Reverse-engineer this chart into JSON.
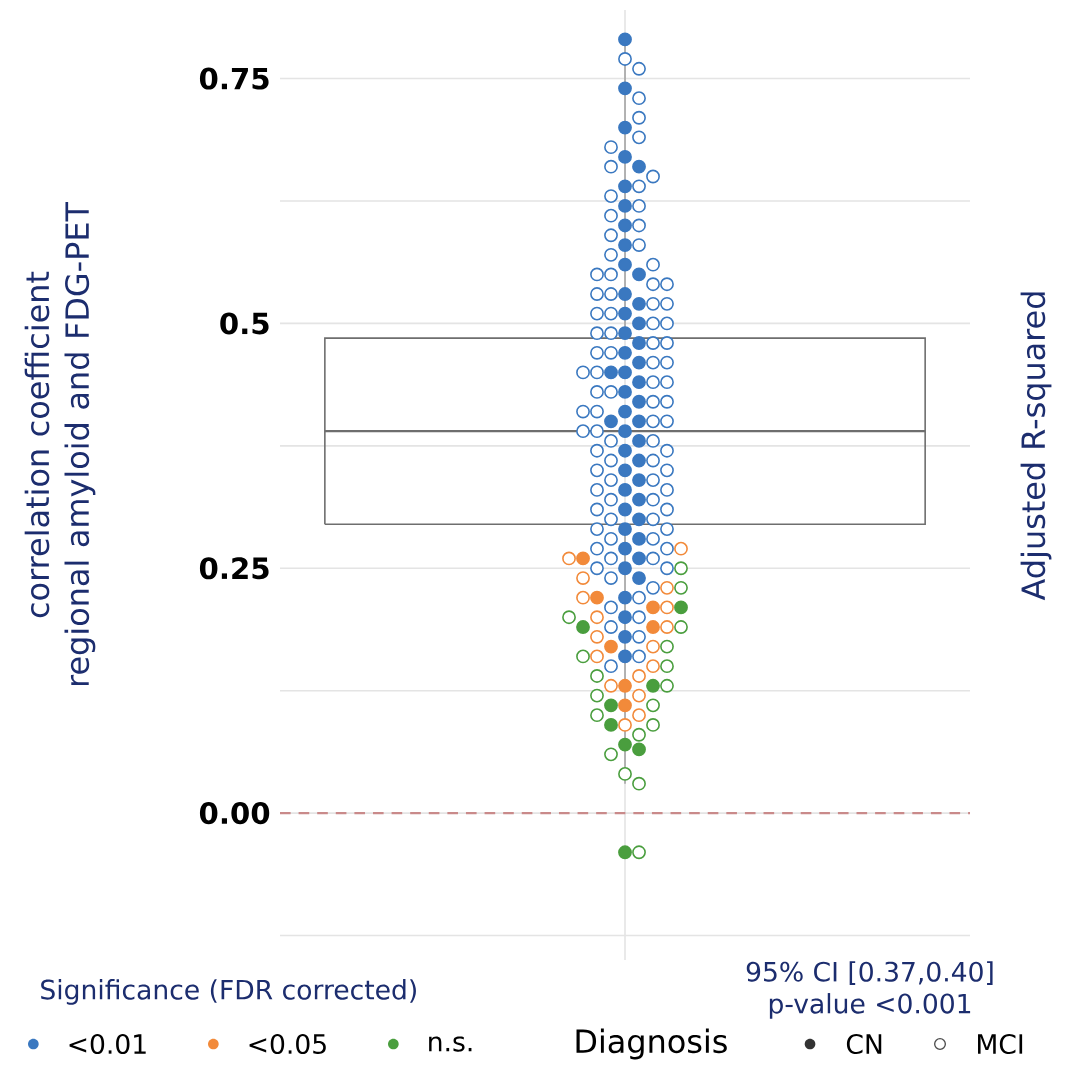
{
  "chart_data": {
    "type": "box",
    "ylabel": "correlation coefficient regional amyloid and FDG-PET",
    "y2label": "Adjusted R-squared",
    "legend_title": "Significance (FDR corrected)",
    "categories": [
      null
    ],
    "boxes": [
      {
        "low": 0.03,
        "q1": 0.295,
        "median": 0.39,
        "q3": 0.485,
        "high": 0.79
      }
    ],
    "ylim": [
      -0.15,
      0.82
    ],
    "yticks": [
      {
        "value": -0.125,
        "label": null
      },
      {
        "value": 0,
        "label": "0.00"
      },
      {
        "value": 0.125,
        "label": null
      },
      0.25,
      {
        "value": 0.375,
        "label": null
      },
      0.5,
      {
        "value": 0.625,
        "label": null
      },
      0.75
    ],
    "grid": true,
    "legend": "bottom",
    "ref_lines": [
      {
        "axis": "y",
        "value": 0,
        "color": "#c98a8a",
        "line_style": "dashed"
      }
    ],
    "annotations": [
      "95% CI [0.37,0.40]",
      "p-value <0.001",
      "Diagnosis",
      "CN",
      "MCI"
    ],
    "series": [
      {
        "type": "scatter",
        "name": "<0.01",
        "color": "#3a78c0",
        "marker": "circle",
        "x": [
          null,
          null,
          null,
          null,
          null,
          null,
          null,
          null,
          null,
          null,
          null,
          null,
          null,
          null,
          null,
          null,
          null,
          null,
          null,
          null,
          null,
          null,
          null,
          null,
          null,
          null,
          null,
          null,
          null,
          null,
          null,
          null,
          null,
          null,
          null,
          null,
          null,
          null,
          null,
          null,
          null,
          null,
          null,
          null,
          null,
          null,
          null
        ],
        "values": [
          0.79,
          0.74,
          0.7,
          0.67,
          0.66,
          0.64,
          0.62,
          0.6,
          0.58,
          0.56,
          0.55,
          0.53,
          0.52,
          0.51,
          0.5,
          0.49,
          0.48,
          0.47,
          0.46,
          0.45,
          0.45,
          0.44,
          0.43,
          0.42,
          0.41,
          0.4,
          0.4,
          0.39,
          0.38,
          0.37,
          0.36,
          0.35,
          0.34,
          0.33,
          0.32,
          0.31,
          0.3,
          0.29,
          0.28,
          0.27,
          0.26,
          0.25,
          0.24,
          0.22,
          0.2,
          0.18,
          0.16
        ]
      },
      {
        "type": "scatter",
        "color": "#3a78c0",
        "marker": "circle-open",
        "x": [
          null,
          null,
          null,
          null,
          null,
          null,
          null,
          null,
          null,
          null,
          null,
          null,
          null,
          null,
          null,
          null,
          null,
          null,
          null,
          null,
          null,
          null,
          null,
          null,
          null,
          null,
          null,
          null,
          null,
          null,
          null,
          null,
          null,
          null,
          null,
          null,
          null,
          null,
          null,
          null,
          null,
          null,
          null,
          null,
          null,
          null,
          null,
          null,
          null,
          null,
          null,
          null,
          null,
          null,
          null,
          null,
          null,
          null,
          null,
          null,
          null,
          null,
          null,
          null,
          null,
          null,
          null,
          null,
          null,
          null,
          null,
          null,
          null,
          null,
          null,
          null,
          null,
          null,
          null,
          null,
          null,
          null,
          null,
          null,
          null,
          null,
          null,
          null
        ],
        "values": [
          0.77,
          0.76,
          0.73,
          0.71,
          0.69,
          0.68,
          0.66,
          0.65,
          0.64,
          0.63,
          0.62,
          0.61,
          0.6,
          0.59,
          0.58,
          0.57,
          0.56,
          0.55,
          0.55,
          0.54,
          0.54,
          0.53,
          0.53,
          0.52,
          0.52,
          0.51,
          0.51,
          0.5,
          0.5,
          0.49,
          0.49,
          0.48,
          0.48,
          0.47,
          0.47,
          0.46,
          0.46,
          0.45,
          0.45,
          0.44,
          0.44,
          0.43,
          0.43,
          0.42,
          0.42,
          0.41,
          0.41,
          0.4,
          0.4,
          0.39,
          0.39,
          0.38,
          0.38,
          0.37,
          0.37,
          0.36,
          0.36,
          0.35,
          0.35,
          0.34,
          0.34,
          0.33,
          0.33,
          0.32,
          0.32,
          0.31,
          0.31,
          0.3,
          0.3,
          0.29,
          0.29,
          0.28,
          0.28,
          0.27,
          0.27,
          0.26,
          0.26,
          0.25,
          0.25,
          0.24,
          0.23,
          0.22,
          0.21,
          0.2,
          0.19,
          0.18,
          0.16,
          0.15
        ]
      },
      {
        "type": "scatter",
        "name": "<0.05",
        "color": "#f28a3a",
        "marker": "circle",
        "x": [
          null,
          null,
          null,
          null,
          null,
          null,
          null
        ],
        "values": [
          0.26,
          0.22,
          0.21,
          0.19,
          0.17,
          0.13,
          0.11
        ]
      },
      {
        "type": "scatter",
        "color": "#f28a3a",
        "marker": "circle-open",
        "x": [
          null,
          null,
          null,
          null,
          null,
          null,
          null,
          null,
          null,
          null,
          null,
          null,
          null,
          null,
          null,
          null,
          null
        ],
        "values": [
          0.27,
          0.26,
          0.24,
          0.23,
          0.22,
          0.21,
          0.2,
          0.19,
          0.18,
          0.17,
          0.16,
          0.15,
          0.14,
          0.13,
          0.12,
          0.1,
          0.09
        ]
      },
      {
        "type": "scatter",
        "name": "n.s.",
        "color": "#4a9e3e",
        "marker": "circle",
        "x": [
          null,
          null,
          null,
          null,
          null,
          null,
          null,
          null
        ],
        "values": [
          0.21,
          0.19,
          0.13,
          0.11,
          0.09,
          0.07,
          0.065,
          -0.04
        ]
      },
      {
        "type": "scatter",
        "color": "#4a9e3e",
        "marker": "circle-open",
        "x": [
          null,
          null,
          null,
          null,
          null,
          null,
          null,
          null,
          null,
          null,
          null,
          null,
          null,
          null,
          null,
          null,
          null,
          null
        ],
        "values": [
          0.25,
          0.23,
          0.2,
          0.19,
          0.17,
          0.16,
          0.15,
          0.14,
          0.13,
          0.12,
          0.11,
          0.1,
          0.09,
          0.08,
          0.06,
          0.04,
          0.03,
          -0.04
        ]
      }
    ]
  }
}
